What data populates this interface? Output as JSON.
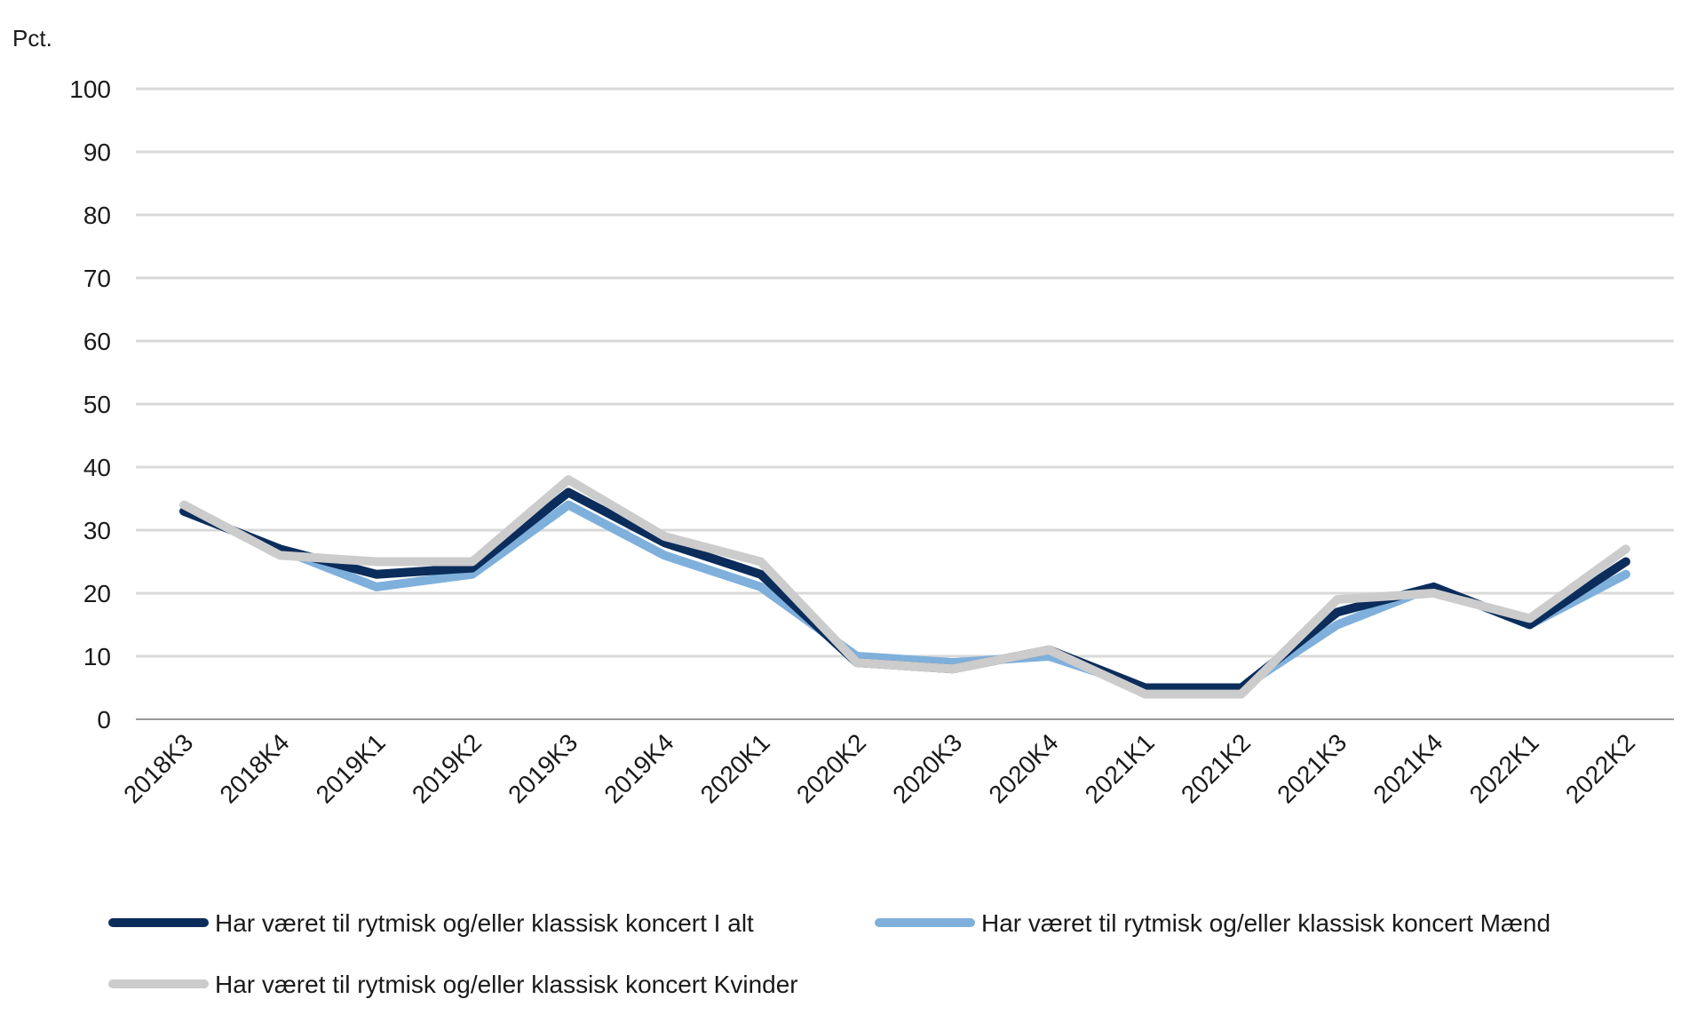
{
  "chart_data": {
    "type": "line",
    "ylabel": "Pct.",
    "ylim": [
      0,
      100
    ],
    "yticks": [
      "0",
      "10",
      "20",
      "30",
      "40",
      "50",
      "60",
      "70",
      "80",
      "90",
      "100"
    ],
    "categories": [
      "2018K3",
      "2018K4",
      "2019K1",
      "2019K2",
      "2019K3",
      "2019K4",
      "2020K1",
      "2020K2",
      "2020K3",
      "2020K4",
      "2021K1",
      "2021K2",
      "2021K3",
      "2021K4",
      "2022K1",
      "2022K2"
    ],
    "grid": true,
    "legend_position": "bottom",
    "series": [
      {
        "name": "Har været til rytmisk og/eller klassisk koncert I alt",
        "color": "#0b2d5b",
        "values": [
          33,
          27,
          23,
          24,
          36,
          28,
          23,
          9,
          8,
          11,
          5,
          5,
          17,
          21,
          15,
          25
        ]
      },
      {
        "name": "Har været til rytmisk og/eller klassisk koncert Mænd",
        "color": "#7fb0dc",
        "values": [
          33,
          27,
          21,
          23,
          34,
          26,
          21,
          10,
          9,
          10,
          5,
          5,
          15,
          21,
          15,
          23
        ]
      },
      {
        "name": "Har været til rytmisk og/eller klassisk koncert Kvinder",
        "color": "#cccccc",
        "values": [
          34,
          26,
          25,
          25,
          38,
          29,
          25,
          9,
          8,
          11,
          4,
          4,
          19,
          20,
          16,
          27
        ]
      }
    ]
  }
}
